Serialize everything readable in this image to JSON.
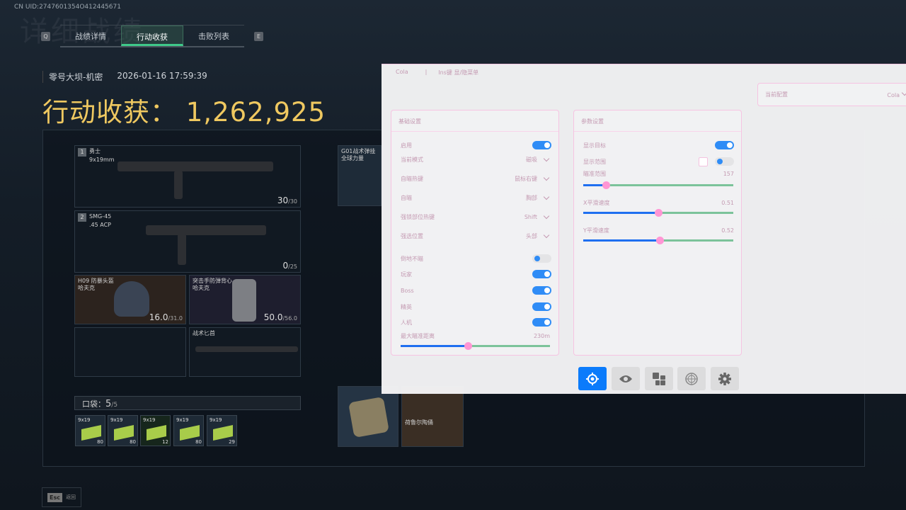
{
  "game": {
    "uid": "CN UID:2747601354O412445671",
    "bg_title": "详细战绩",
    "key_prev": "Q",
    "key_next": "E",
    "tabs": [
      {
        "label": "战绩详情"
      },
      {
        "label": "行动收获",
        "active": true
      },
      {
        "label": "击败列表"
      }
    ],
    "map": "零号大坝-机密",
    "datetime": "2026-01-16 17:59:39",
    "loot_label": "行动收获：",
    "loot_value": "1,262,925",
    "weapons": [
      {
        "slot": "1",
        "name": "勇士",
        "ammo_type": "9x19mm",
        "ammo": "30",
        "max": "/30"
      },
      {
        "slot": "2",
        "name": "SMG-45",
        "ammo_type": ".45 ACP",
        "ammo": "0",
        "max": "/25"
      }
    ],
    "helmet": {
      "name": "H09 防暴头盔",
      "brand": "哈夫克",
      "dur": "16.0",
      "max": "/31.0"
    },
    "armor": {
      "name": "突击手防弹背心",
      "brand": "哈夫克",
      "dur": "50.0",
      "max": "/56.0"
    },
    "melee": {
      "name": "战术匕首"
    },
    "rig": {
      "name": "G01战术弹挂",
      "brand": "全球力量"
    },
    "pocket": {
      "label": "口袋：",
      "count": "5",
      "max": "/5"
    },
    "ammo_items": [
      {
        "label": "9x19",
        "count": "80"
      },
      {
        "label": "9x19",
        "count": "80"
      },
      {
        "label": "9x19",
        "count": "12"
      },
      {
        "label": "9x19",
        "count": "80"
      },
      {
        "label": "9x19",
        "count": "29"
      }
    ],
    "figurine": "荷鲁尔陶俑",
    "esc_key": "Esc",
    "esc_label": "返回"
  },
  "menu": {
    "brand": "Cola",
    "sep": "|",
    "hint": "Ins键 显/隐菜单",
    "config": {
      "label": "当前配置",
      "value": "Cola"
    },
    "basic": {
      "title": "基础设置",
      "enable": {
        "label": "启用",
        "on": true
      },
      "mode": {
        "label": "当前模式",
        "value": "磁吸"
      },
      "hotkey": {
        "label": "自瞄热键",
        "value": "鼠标右键"
      },
      "aim": {
        "label": "自瞄",
        "value": "胸部"
      },
      "lock_hotkey": {
        "label": "强锁部位热键",
        "value": "Shift"
      },
      "force_pos": {
        "label": "强选位置",
        "value": "头部"
      },
      "downed": {
        "label": "倒地不瞄",
        "on": false
      },
      "player": {
        "label": "玩家",
        "on": true
      },
      "boss": {
        "label": "Boss",
        "on": true
      },
      "elite": {
        "label": "精英",
        "on": true
      },
      "bot": {
        "label": "人机",
        "on": true
      },
      "max_dist": {
        "label": "最大瞄准距离",
        "value": "230m",
        "fraction": 0.45
      }
    },
    "params": {
      "title": "参数设置",
      "show_target": {
        "label": "显示目标",
        "on": true
      },
      "show_range": {
        "label": "显示范围",
        "on": false,
        "checked": false
      },
      "aim_range": {
        "label": "瞄准范围",
        "value": "157",
        "fraction": 0.15
      },
      "x_smooth": {
        "label": "X平滑速度",
        "value": "0.51",
        "fraction": 0.5
      },
      "y_smooth": {
        "label": "Y平滑速度",
        "value": "0.52",
        "fraction": 0.51
      }
    },
    "nav": [
      {
        "icon": "crosshair-icon",
        "active": true
      },
      {
        "icon": "eye-icon"
      },
      {
        "icon": "blocks-icon"
      },
      {
        "icon": "radar-icon"
      },
      {
        "icon": "gear-icon"
      }
    ],
    "colors": {
      "accent": "#0b7bfb",
      "border": "#f6c4e2",
      "thumb": "#ff96d4",
      "track": "#7cc39a",
      "text": "#c49ab2"
    }
  }
}
